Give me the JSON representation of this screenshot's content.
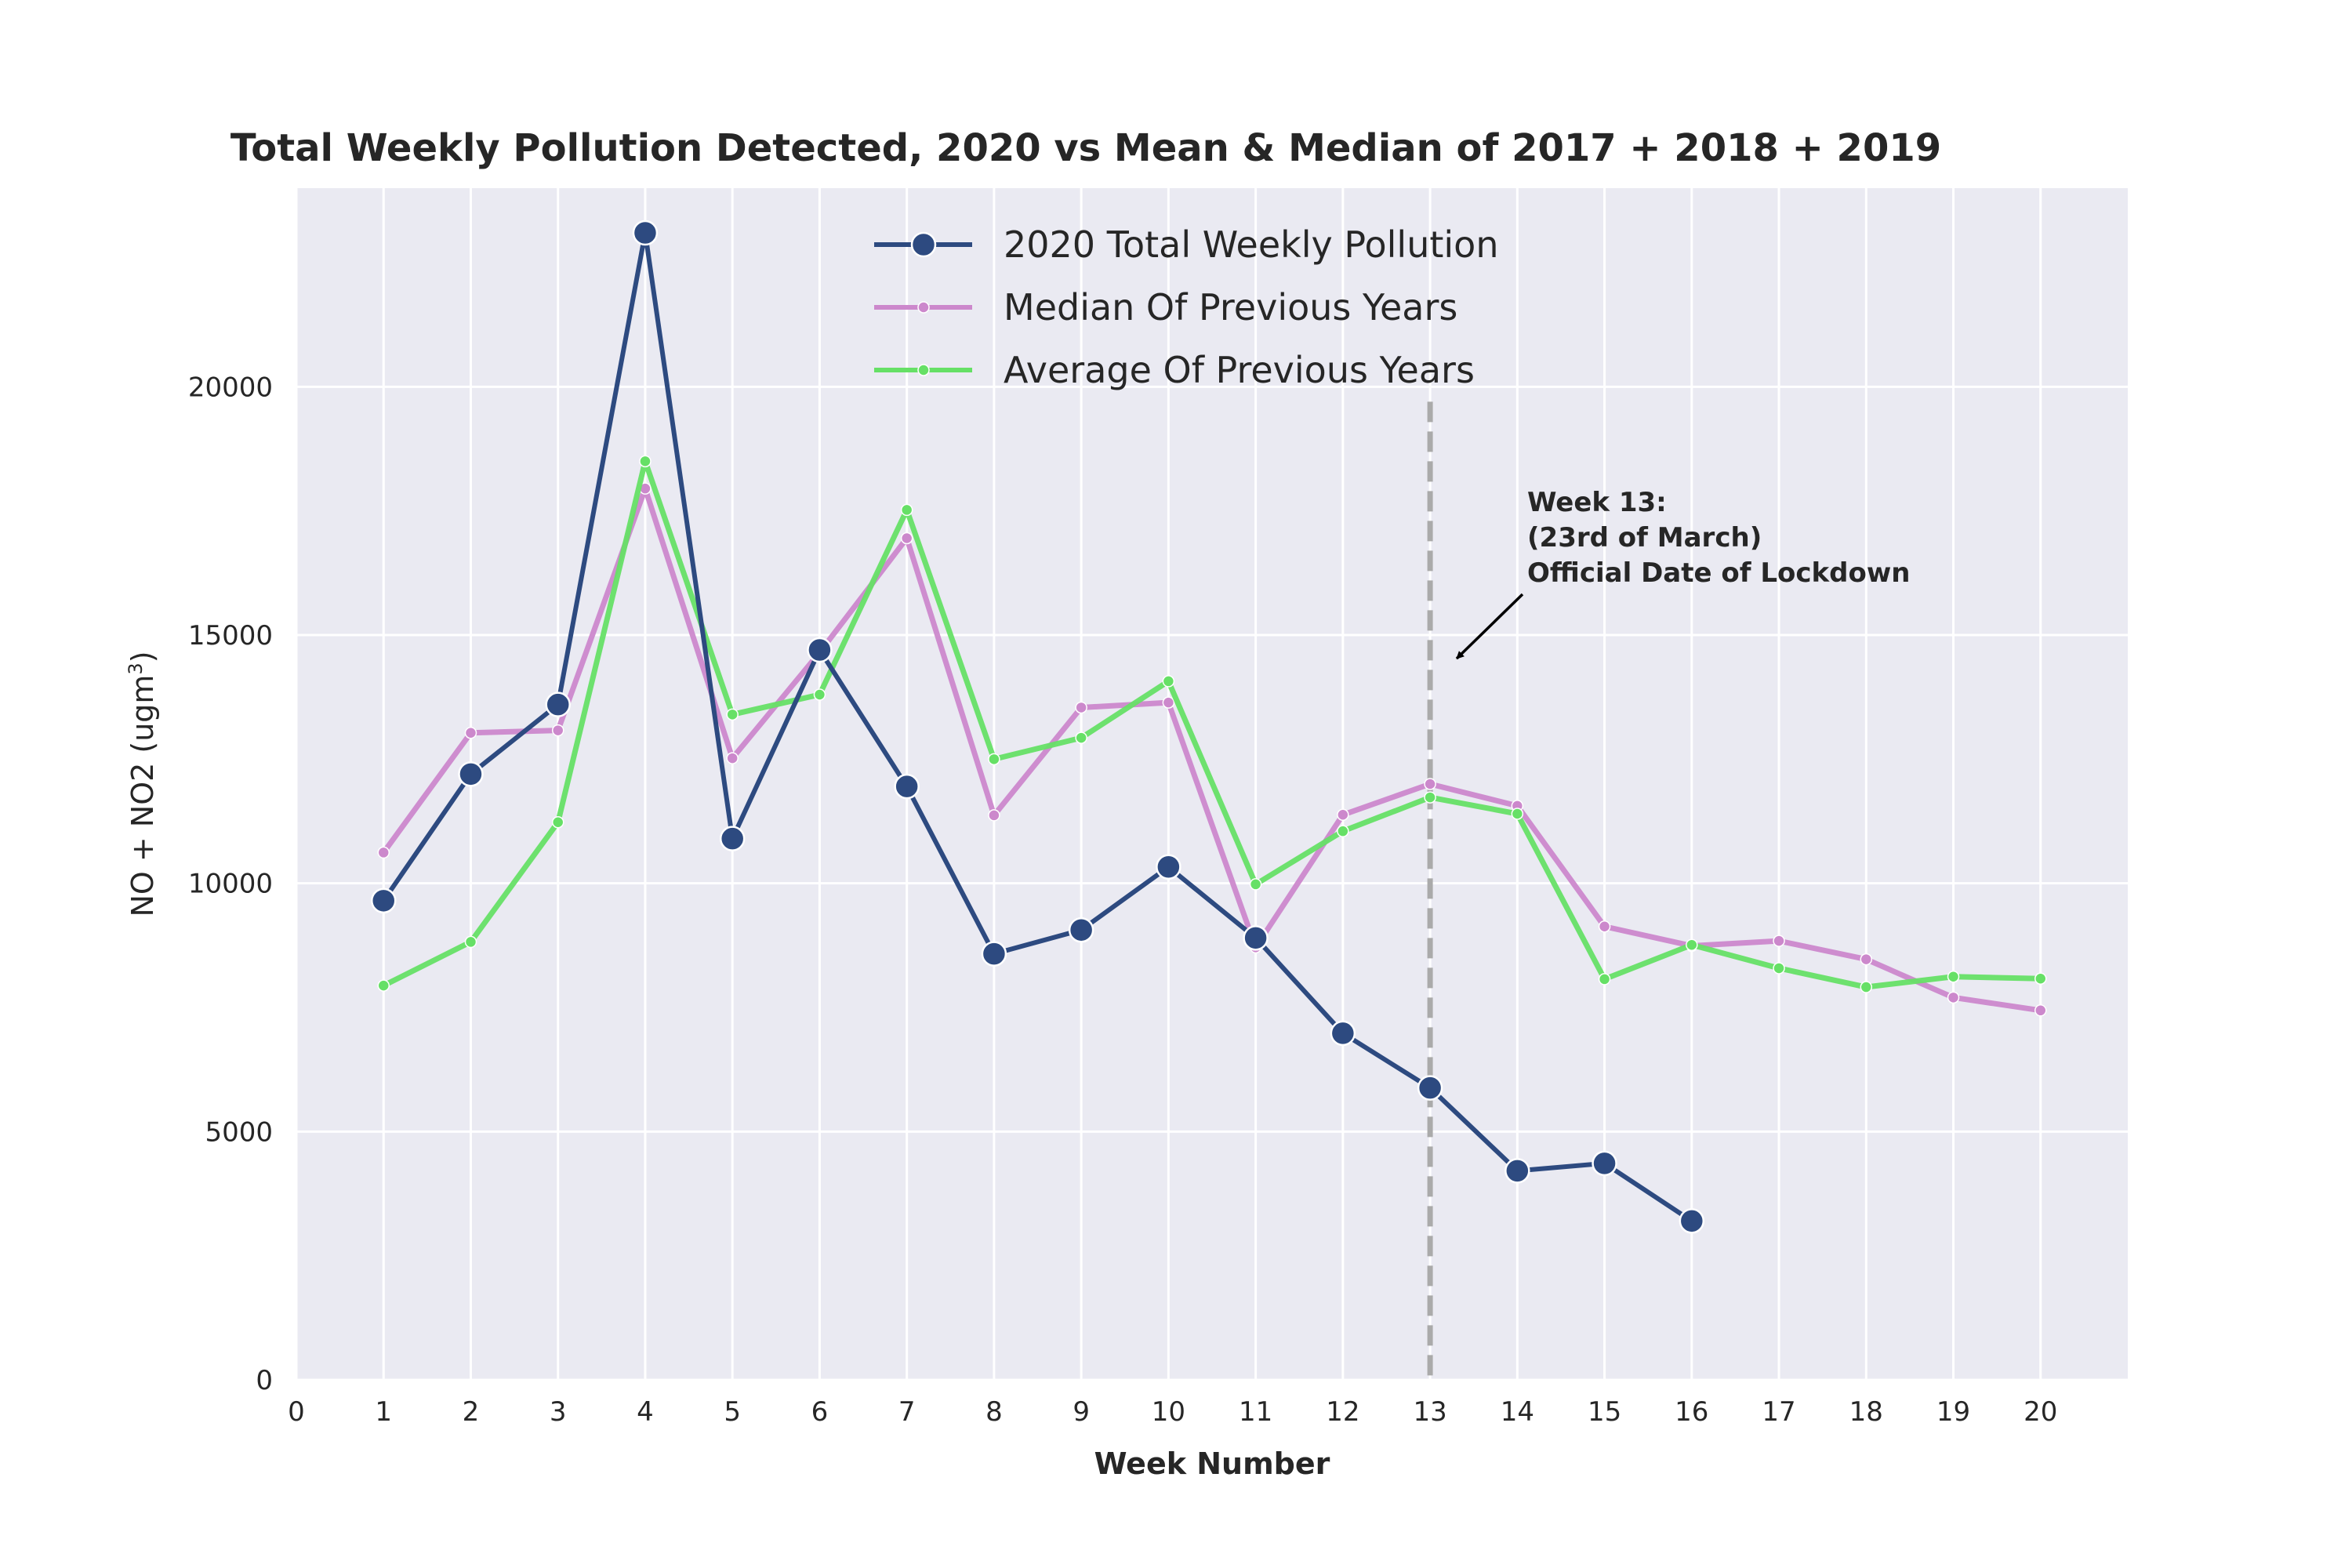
{
  "chart_data": {
    "type": "line",
    "title": "Total Weekly Pollution Detected, 2020 vs Mean & Median of 2017 + 2018 + 2019",
    "xlabel": "Week Number",
    "ylabel": "NO + NO2 (ugm",
    "ylabel_sup": "3",
    "ylabel_close": ")",
    "xlim": [
      0,
      21
    ],
    "ylim": [
      0,
      24000
    ],
    "xticks": [
      0,
      1,
      2,
      3,
      4,
      5,
      6,
      7,
      8,
      9,
      10,
      11,
      12,
      13,
      14,
      15,
      16,
      17,
      18,
      19,
      20
    ],
    "yticks": [
      0,
      5000,
      10000,
      15000,
      20000
    ],
    "grid": true,
    "legend_position": "top-center",
    "series": [
      {
        "name": "2020 Total Weekly Pollution",
        "color": "#2d4a80",
        "marker": "large",
        "x": [
          1,
          2,
          3,
          4,
          5,
          6,
          7,
          8,
          9,
          10,
          11,
          12,
          13,
          14,
          15,
          16
        ],
        "y": [
          9650,
          12200,
          13600,
          23100,
          10900,
          14700,
          11950,
          8580,
          9060,
          10330,
          8900,
          6980,
          5880,
          4210,
          4360,
          3200
        ]
      },
      {
        "name": "Median Of Previous Years",
        "color": "#cc88cc",
        "marker": "small",
        "x": [
          1,
          2,
          3,
          4,
          5,
          6,
          7,
          8,
          9,
          10,
          11,
          12,
          13,
          14,
          15,
          16,
          17,
          18,
          19,
          20
        ],
        "y": [
          10620,
          13030,
          13080,
          17950,
          12520,
          14650,
          16950,
          11370,
          13540,
          13640,
          8710,
          11380,
          12000,
          11560,
          9130,
          8740,
          8840,
          8470,
          7700,
          7440
        ]
      },
      {
        "name": "Average Of Previous Years",
        "color": "#66e066",
        "marker": "small",
        "x": [
          1,
          2,
          3,
          4,
          5,
          6,
          7,
          8,
          9,
          10,
          11,
          12,
          13,
          14,
          15,
          16,
          17,
          18,
          19,
          20
        ],
        "y": [
          7940,
          8820,
          11230,
          18500,
          13400,
          13800,
          17520,
          12500,
          12930,
          14070,
          9980,
          11050,
          11730,
          11400,
          8070,
          8760,
          8290,
          7910,
          8120,
          8080
        ]
      }
    ],
    "vline": {
      "x": 13,
      "color": "#aaaaaa"
    },
    "annotation": {
      "lines": [
        "Week 13:",
        "(23rd of March)",
        "Official Date of Lockdown"
      ],
      "arrow_to": {
        "x": 13.2,
        "y": 14400
      }
    }
  }
}
